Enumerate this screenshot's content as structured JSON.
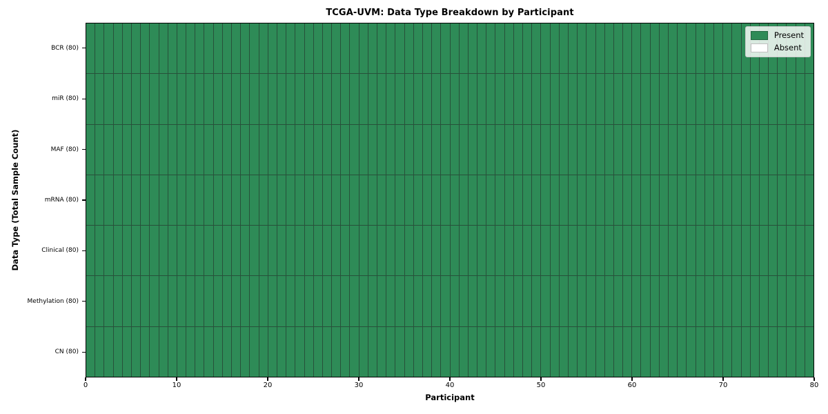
{
  "chart_data": {
    "type": "heatmap",
    "title": "TCGA-UVM: Data Type Breakdown by Participant",
    "xlabel": "Participant",
    "ylabel": "Data Type (Total Sample Count)",
    "x_axis": {
      "min": 0,
      "max": 80,
      "ticks": [
        0,
        10,
        20,
        30,
        40,
        50,
        60,
        70,
        80
      ]
    },
    "n_participants": 80,
    "rows": [
      {
        "name": "BCR",
        "label": "BCR (80)",
        "total_samples": 80,
        "present_count": 80,
        "absent_count": 0
      },
      {
        "name": "miR",
        "label": "miR (80)",
        "total_samples": 80,
        "present_count": 80,
        "absent_count": 0
      },
      {
        "name": "MAF",
        "label": "MAF (80)",
        "total_samples": 80,
        "present_count": 80,
        "absent_count": 0
      },
      {
        "name": "mRNA",
        "label": "mRNA (80)",
        "total_samples": 80,
        "present_count": 80,
        "absent_count": 0
      },
      {
        "name": "Clinical",
        "label": "Clinical (80)",
        "total_samples": 80,
        "present_count": 80,
        "absent_count": 0
      },
      {
        "name": "Methylation",
        "label": "Methylation (80)",
        "total_samples": 80,
        "present_count": 80,
        "absent_count": 0
      },
      {
        "name": "CN",
        "label": "CN (80)",
        "total_samples": 80,
        "present_count": 80,
        "absent_count": 0
      }
    ],
    "legend": {
      "position": "upper-right",
      "entries": [
        {
          "label": "Present",
          "color": "#2e8b57"
        },
        {
          "label": "Absent",
          "color": "#ffffff"
        }
      ]
    },
    "colors": {
      "present": "#2e8b57",
      "absent": "#ffffff",
      "cell_border": "#27503a",
      "axis": "#000000",
      "legend_border": "#cccccc",
      "legend_background": "#ffffff"
    },
    "grid": true
  }
}
